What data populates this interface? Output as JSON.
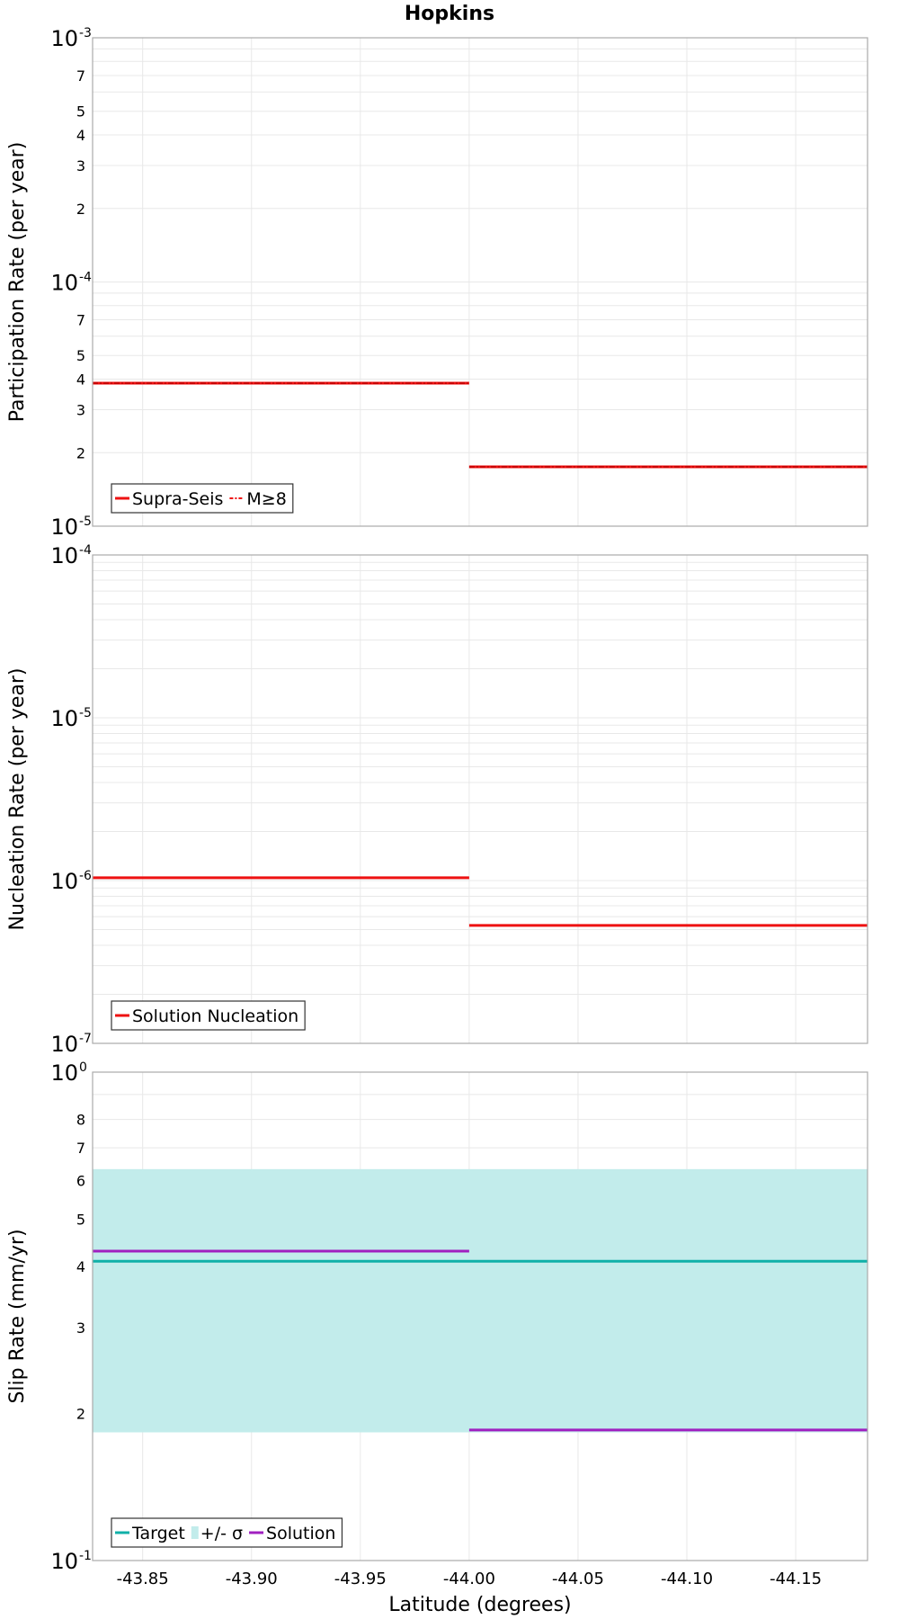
{
  "figure_title": "Hopkins",
  "shared_xlabel": "Latitude (degrees)",
  "x_tick_labels": [
    "-43.85",
    "-43.90",
    "-43.95",
    "-44.00",
    "-44.05",
    "-44.10",
    "-44.15"
  ],
  "colors": {
    "red": "#ee1111",
    "teal": "#10b0a8",
    "band": "#c2eceb",
    "purple": "#a020c0",
    "grid": "#e8e8e8",
    "axis": "#aaaaaa",
    "text": "#000000"
  },
  "chart_data": [
    {
      "type": "line",
      "panel": "participation",
      "ylabel": "Participation Rate (per year)",
      "yscale": "log",
      "xlim": [
        -43.827,
        -44.183
      ],
      "ylim": [
        1e-05,
        0.001
      ],
      "x_ticks": [
        -43.85,
        -43.9,
        -43.95,
        -44.0,
        -44.05,
        -44.1,
        -44.15
      ],
      "decade_tick_labels": [
        {
          "value": 0.001,
          "base": "10",
          "exp": "-3"
        },
        {
          "value": 0.0001,
          "base": "10",
          "exp": "-4"
        },
        {
          "value": 1e-05,
          "base": "10",
          "exp": "-5"
        }
      ],
      "minor_tick_labels": [
        {
          "value": 0.0007,
          "label": "7"
        },
        {
          "value": 0.0005,
          "label": "5"
        },
        {
          "value": 0.0004,
          "label": "4"
        },
        {
          "value": 0.0003,
          "label": "3"
        },
        {
          "value": 0.0002,
          "label": "2"
        },
        {
          "value": 7e-05,
          "label": "7"
        },
        {
          "value": 5e-05,
          "label": "5"
        },
        {
          "value": 4e-05,
          "label": "4"
        },
        {
          "value": 3e-05,
          "label": "3"
        },
        {
          "value": 2e-05,
          "label": "2"
        }
      ],
      "legend": {
        "position": "bottom-left",
        "entries": [
          {
            "label": "Supra-Seis",
            "color": "#ee1111",
            "style": "solid"
          },
          {
            "label": "M≥8",
            "color": "#ee1111",
            "style": "dashdot"
          }
        ]
      },
      "series": [
        {
          "name": "Supra-Seis",
          "color": "#ee1111",
          "style": "solid",
          "width": 3,
          "segments": [
            {
              "x": [
                -43.827,
                -44.0
              ],
              "y": [
                3.85e-05,
                3.85e-05
              ]
            },
            {
              "x": [
                -44.0,
                -44.183
              ],
              "y": [
                1.75e-05,
                1.75e-05
              ]
            }
          ]
        },
        {
          "name": "M≥8",
          "color": "#ee1111",
          "style": "dashdot",
          "width": 1.5,
          "segments": [
            {
              "x": [
                -43.827,
                -44.0
              ],
              "y": [
                3.85e-05,
                3.85e-05
              ]
            },
            {
              "x": [
                -44.0,
                -44.183
              ],
              "y": [
                1.75e-05,
                1.75e-05
              ]
            }
          ]
        }
      ]
    },
    {
      "type": "line",
      "panel": "nucleation",
      "ylabel": "Nucleation Rate (per year)",
      "yscale": "log",
      "xlim": [
        -43.827,
        -44.183
      ],
      "ylim": [
        1e-07,
        0.0001
      ],
      "x_ticks": [
        -43.85,
        -43.9,
        -43.95,
        -44.0,
        -44.05,
        -44.1,
        -44.15
      ],
      "decade_tick_labels": [
        {
          "value": 0.0001,
          "base": "10",
          "exp": "-4"
        },
        {
          "value": 1e-05,
          "base": "10",
          "exp": "-5"
        },
        {
          "value": 1e-06,
          "base": "10",
          "exp": "-6"
        },
        {
          "value": 1e-07,
          "base": "10",
          "exp": "-7"
        }
      ],
      "minor_tick_labels": [],
      "legend": {
        "position": "bottom-left",
        "entries": [
          {
            "label": "Solution Nucleation",
            "color": "#ee1111",
            "style": "solid"
          }
        ]
      },
      "series": [
        {
          "name": "Solution Nucleation",
          "color": "#ee1111",
          "style": "solid",
          "width": 3,
          "segments": [
            {
              "x": [
                -43.827,
                -44.0
              ],
              "y": [
                1.04e-06,
                1.04e-06
              ]
            },
            {
              "x": [
                -44.0,
                -44.183
              ],
              "y": [
                5.3e-07,
                5.3e-07
              ]
            }
          ]
        }
      ]
    },
    {
      "type": "line",
      "panel": "slip",
      "ylabel": "Slip Rate (mm/yr)",
      "yscale": "log",
      "xlim": [
        -43.827,
        -44.183
      ],
      "ylim": [
        0.1,
        1.0
      ],
      "x_ticks": [
        -43.85,
        -43.9,
        -43.95,
        -44.0,
        -44.05,
        -44.1,
        -44.15
      ],
      "decade_tick_labels": [
        {
          "value": 1,
          "base": "10",
          "exp": "0"
        },
        {
          "value": 0.1,
          "base": "10",
          "exp": "-1"
        }
      ],
      "minor_tick_labels": [
        {
          "value": 0.8,
          "label": "8"
        },
        {
          "value": 0.7,
          "label": "7"
        },
        {
          "value": 0.6,
          "label": "6"
        },
        {
          "value": 0.5,
          "label": "5"
        },
        {
          "value": 0.4,
          "label": "4"
        },
        {
          "value": 0.3,
          "label": "3"
        },
        {
          "value": 0.2,
          "label": "2"
        }
      ],
      "band": {
        "name": "+/- σ",
        "x": [
          -43.827,
          -44.183
        ],
        "y_low": 0.183,
        "y_high": 0.633,
        "color": "#c2eceb"
      },
      "legend": {
        "position": "bottom-left",
        "entries": [
          {
            "label": "Target",
            "color": "#10b0a8",
            "style": "solid"
          },
          {
            "label": "+/- σ",
            "color": "#c2eceb",
            "style": "band"
          },
          {
            "label": "Solution",
            "color": "#a020c0",
            "style": "solid"
          }
        ]
      },
      "series": [
        {
          "name": "Target",
          "color": "#10b0a8",
          "style": "solid",
          "width": 3,
          "segments": [
            {
              "x": [
                -43.827,
                -44.183
              ],
              "y": [
                0.41,
                0.41
              ]
            }
          ]
        },
        {
          "name": "Solution",
          "color": "#a020c0",
          "style": "solid",
          "width": 3,
          "segments": [
            {
              "x": [
                -43.827,
                -44.0
              ],
              "y": [
                0.43,
                0.43
              ]
            },
            {
              "x": [
                -44.0,
                -44.183
              ],
              "y": [
                0.185,
                0.185
              ]
            }
          ]
        }
      ]
    }
  ]
}
